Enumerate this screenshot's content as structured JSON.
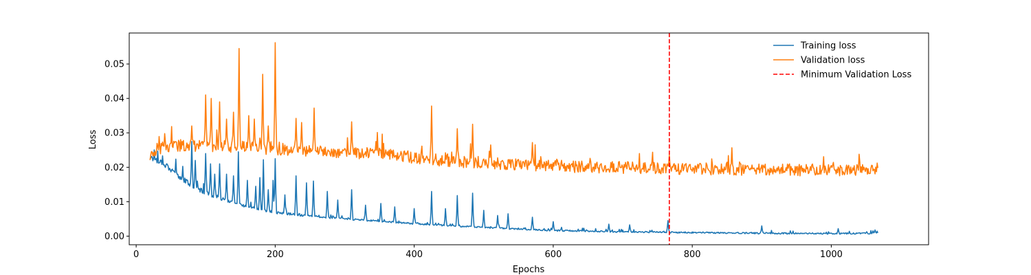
{
  "chart_data": {
    "type": "line",
    "title": "",
    "xlabel": "Epochs",
    "ylabel": "Loss",
    "xlim": [
      -10,
      1140
    ],
    "ylim": [
      -0.0025,
      0.059
    ],
    "xticks": [
      0,
      200,
      400,
      600,
      800,
      1000
    ],
    "xtick_labels": [
      "0",
      "200",
      "400",
      "600",
      "800",
      "1000"
    ],
    "yticks": [
      0.0,
      0.01,
      0.02,
      0.03,
      0.04,
      0.05
    ],
    "ytick_labels": [
      "0.00",
      "0.01",
      "0.02",
      "0.03",
      "0.04",
      "0.05"
    ],
    "grid": false,
    "legend_position": "top-right",
    "x_start": 20,
    "x_end": 1067,
    "series": [
      {
        "name": "Training loss",
        "color": "#1f77b4",
        "anchors": [
          [
            20,
            0.0227
          ],
          [
            40,
            0.021
          ],
          [
            60,
            0.0175
          ],
          [
            80,
            0.0145
          ],
          [
            100,
            0.0125
          ],
          [
            120,
            0.011
          ],
          [
            140,
            0.0095
          ],
          [
            160,
            0.0085
          ],
          [
            180,
            0.0075
          ],
          [
            200,
            0.0068
          ],
          [
            250,
            0.0058
          ],
          [
            300,
            0.005
          ],
          [
            350,
            0.0043
          ],
          [
            400,
            0.0036
          ],
          [
            450,
            0.003
          ],
          [
            500,
            0.0025
          ],
          [
            550,
            0.002
          ],
          [
            600,
            0.0016
          ],
          [
            700,
            0.0012
          ],
          [
            800,
            0.001
          ],
          [
            900,
            0.0008
          ],
          [
            1000,
            0.0007
          ],
          [
            1067,
            0.0008
          ]
        ],
        "spikes": [
          [
            80,
            0.0275
          ],
          [
            85,
            0.022
          ],
          [
            100,
            0.024
          ],
          [
            107,
            0.021
          ],
          [
            113,
            0.018
          ],
          [
            120,
            0.021
          ],
          [
            130,
            0.018
          ],
          [
            140,
            0.0175
          ],
          [
            147,
            0.0245
          ],
          [
            160,
            0.0162
          ],
          [
            172,
            0.0145
          ],
          [
            178,
            0.017
          ],
          [
            183,
            0.0222
          ],
          [
            190,
            0.0135
          ],
          [
            197,
            0.0162
          ],
          [
            200,
            0.0225
          ],
          [
            214,
            0.012
          ],
          [
            230,
            0.0175
          ],
          [
            245,
            0.0155
          ],
          [
            255,
            0.016
          ],
          [
            275,
            0.013
          ],
          [
            290,
            0.0105
          ],
          [
            310,
            0.0135
          ],
          [
            330,
            0.009
          ],
          [
            352,
            0.0095
          ],
          [
            372,
            0.0085
          ],
          [
            400,
            0.008
          ],
          [
            425,
            0.013
          ],
          [
            445,
            0.008
          ],
          [
            462,
            0.0118
          ],
          [
            484,
            0.0125
          ],
          [
            500,
            0.0075
          ],
          [
            520,
            0.006
          ],
          [
            535,
            0.0065
          ],
          [
            570,
            0.0055
          ],
          [
            600,
            0.0042
          ],
          [
            680,
            0.0035
          ],
          [
            710,
            0.0033
          ],
          [
            765,
            0.0045
          ],
          [
            900,
            0.003
          ],
          [
            1010,
            0.0022
          ],
          [
            1063,
            0.0018
          ]
        ],
        "noise": 0.0012
      },
      {
        "name": "Validation loss",
        "color": "#ff7f0e",
        "anchors": [
          [
            20,
            0.0225
          ],
          [
            30,
            0.025
          ],
          [
            60,
            0.026
          ],
          [
            100,
            0.026
          ],
          [
            150,
            0.0255
          ],
          [
            200,
            0.025
          ],
          [
            250,
            0.0245
          ],
          [
            300,
            0.024
          ],
          [
            350,
            0.0235
          ],
          [
            400,
            0.0225
          ],
          [
            450,
            0.0215
          ],
          [
            500,
            0.021
          ],
          [
            550,
            0.0205
          ],
          [
            600,
            0.02
          ],
          [
            650,
            0.0198
          ],
          [
            700,
            0.0196
          ],
          [
            750,
            0.0194
          ],
          [
            800,
            0.0192
          ],
          [
            900,
            0.019
          ],
          [
            1000,
            0.0188
          ],
          [
            1067,
            0.0188
          ]
        ],
        "spikes": [
          [
            80,
            0.032
          ],
          [
            100,
            0.041
          ],
          [
            108,
            0.04
          ],
          [
            120,
            0.039
          ],
          [
            130,
            0.034
          ],
          [
            140,
            0.036
          ],
          [
            148,
            0.0545
          ],
          [
            162,
            0.035
          ],
          [
            170,
            0.034
          ],
          [
            182,
            0.047
          ],
          [
            190,
            0.032
          ],
          [
            200,
            0.0562
          ],
          [
            230,
            0.0342
          ],
          [
            238,
            0.033
          ],
          [
            256,
            0.0372
          ],
          [
            310,
            0.0332
          ],
          [
            345,
            0.0275
          ],
          [
            425,
            0.0378
          ],
          [
            462,
            0.0312
          ],
          [
            484,
            0.0325
          ],
          [
            510,
            0.0265
          ],
          [
            570,
            0.0272
          ],
          [
            767,
            0.0235
          ]
        ],
        "noise": 0.0035
      }
    ],
    "markers": [
      {
        "name": "Minimum Validation Loss",
        "x": 767,
        "color": "#ff0000",
        "style": "dashed"
      }
    ]
  }
}
